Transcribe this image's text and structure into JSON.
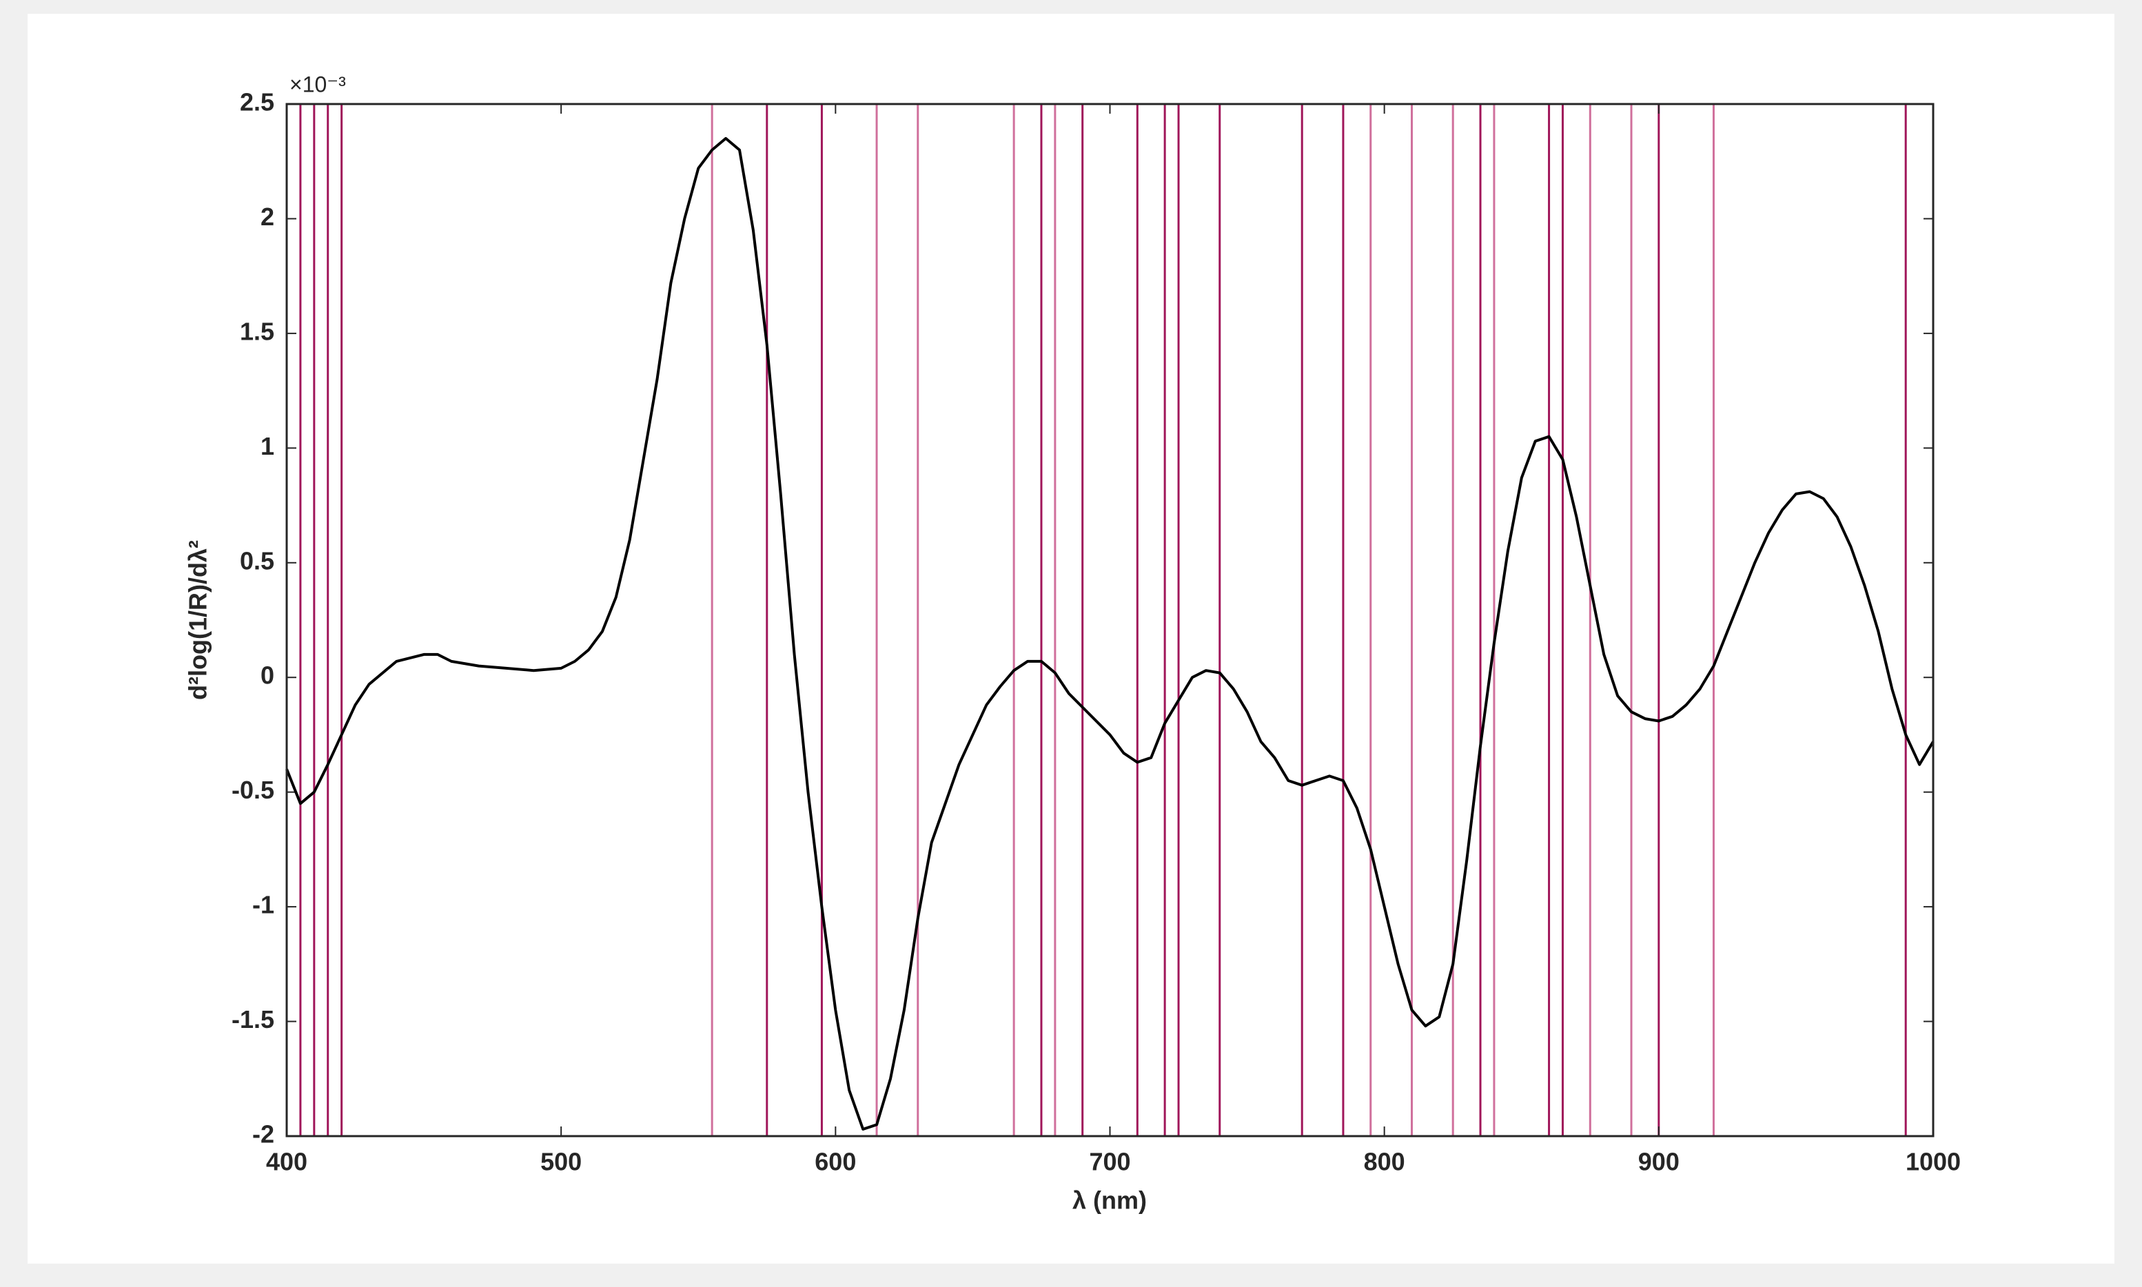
{
  "chart_data": {
    "type": "line",
    "xlabel": "λ (nm)",
    "ylabel": "d²log(1/R)/dλ²",
    "y_multiplier": "×10⁻³",
    "xlim": [
      400,
      1000
    ],
    "xticks": [
      400,
      500,
      600,
      700,
      800,
      900,
      1000
    ],
    "ylim": [
      -2,
      2.5
    ],
    "yticks": [
      -2,
      -1.5,
      -1,
      -0.5,
      0,
      0.5,
      1,
      1.5,
      2,
      2.5
    ],
    "grid": false,
    "x": [
      400,
      405,
      410,
      415,
      420,
      425,
      430,
      440,
      450,
      455,
      460,
      470,
      480,
      490,
      500,
      505,
      510,
      515,
      520,
      525,
      530,
      535,
      540,
      545,
      550,
      555,
      560,
      565,
      570,
      575,
      580,
      585,
      590,
      595,
      600,
      605,
      610,
      615,
      620,
      625,
      630,
      635,
      640,
      645,
      650,
      655,
      660,
      665,
      670,
      675,
      680,
      685,
      690,
      700,
      705,
      710,
      715,
      720,
      725,
      730,
      735,
      740,
      745,
      750,
      755,
      760,
      765,
      770,
      775,
      780,
      785,
      790,
      795,
      800,
      805,
      810,
      815,
      820,
      825,
      830,
      835,
      840,
      845,
      850,
      855,
      860,
      865,
      870,
      875,
      880,
      885,
      890,
      895,
      900,
      905,
      910,
      915,
      920,
      925,
      930,
      935,
      940,
      945,
      950,
      955,
      960,
      965,
      970,
      975,
      980,
      985,
      990,
      995,
      1000
    ],
    "series": [
      {
        "color": "#000000",
        "values": [
          -0.4,
          -0.55,
          -0.5,
          -0.38,
          -0.25,
          -0.12,
          -0.03,
          0.07,
          0.1,
          0.1,
          0.07,
          0.05,
          0.04,
          0.03,
          0.04,
          0.07,
          0.12,
          0.2,
          0.35,
          0.6,
          0.95,
          1.3,
          1.72,
          2.0,
          2.22,
          2.3,
          2.35,
          2.3,
          1.95,
          1.45,
          0.8,
          0.1,
          -0.5,
          -1.0,
          -1.45,
          -1.8,
          -1.97,
          -1.95,
          -1.75,
          -1.45,
          -1.05,
          -0.72,
          -0.55,
          -0.38,
          -0.25,
          -0.12,
          -0.04,
          0.03,
          0.07,
          0.07,
          0.02,
          -0.07,
          -0.13,
          -0.25,
          -0.33,
          -0.37,
          -0.35,
          -0.2,
          -0.1,
          0.0,
          0.03,
          0.02,
          -0.05,
          -0.15,
          -0.28,
          -0.35,
          -0.45,
          -0.47,
          -0.45,
          -0.43,
          -0.45,
          -0.57,
          -0.75,
          -1.0,
          -1.25,
          -1.45,
          -1.52,
          -1.48,
          -1.25,
          -0.8,
          -0.3,
          0.15,
          0.55,
          0.87,
          1.03,
          1.05,
          0.95,
          0.7,
          0.4,
          0.1,
          -0.08,
          -0.15,
          -0.18,
          -0.19,
          -0.17,
          -0.12,
          -0.05,
          0.05,
          0.2,
          0.35,
          0.5,
          0.63,
          0.73,
          0.8,
          0.81,
          0.78,
          0.7,
          0.57,
          0.4,
          0.2,
          -0.05,
          -0.25,
          -0.38,
          -0.28
        ]
      }
    ],
    "vlines": {
      "x": [
        400,
        405,
        410,
        415,
        420,
        555,
        575,
        595,
        615,
        630,
        665,
        675,
        680,
        690,
        710,
        720,
        725,
        740,
        770,
        785,
        795,
        810,
        825,
        835,
        840,
        860,
        865,
        875,
        890,
        900,
        920,
        990
      ],
      "colors": [
        "#a0165a",
        "#a0165a",
        "#a0165a",
        "#a0165a",
        "#a0165a",
        "#d0709c",
        "#a0165a",
        "#a0165a",
        "#d0709c",
        "#d0709c",
        "#d0709c",
        "#a0165a",
        "#d0709c",
        "#a0165a",
        "#a0165a",
        "#a0165a",
        "#a0165a",
        "#a0165a",
        "#a0165a",
        "#a0165a",
        "#d0709c",
        "#d0709c",
        "#d0709c",
        "#a0165a",
        "#d0709c",
        "#a0165a",
        "#a0165a",
        "#d0709c",
        "#d0709c",
        "#a0165a",
        "#d0709c",
        "#a0165a"
      ]
    }
  }
}
